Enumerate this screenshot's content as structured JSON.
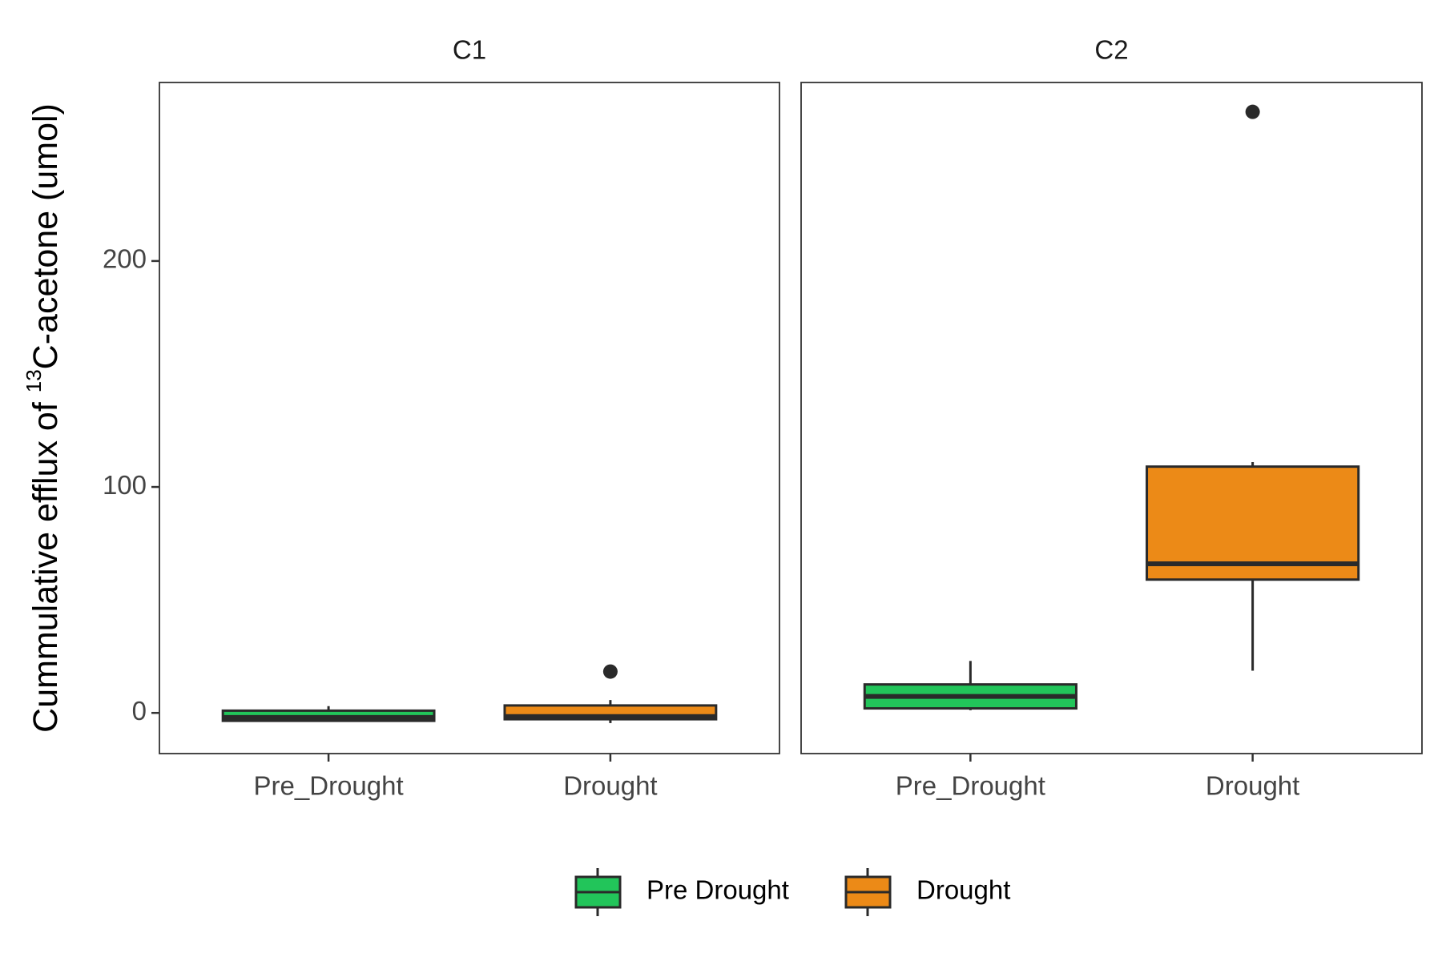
{
  "chart_data": {
    "type": "box",
    "y_label": [
      "Cummulative efflux of ",
      "13",
      "C-acetone (umol)"
    ],
    "ylim": [
      -18,
      279
    ],
    "yticks": [
      0,
      100,
      200
    ],
    "categories": [
      "Pre_Drought",
      "Drought"
    ],
    "series": [
      {
        "name": "Pre Drought",
        "color": "#22c55a"
      },
      {
        "name": "Drought",
        "color": "#ec8a17"
      }
    ],
    "panels": [
      {
        "title": "C1",
        "boxes": [
          {
            "min": -4,
            "q1": -3.5,
            "median": -2,
            "q3": 1,
            "max": 3,
            "outliers": []
          },
          {
            "min": -4.5,
            "q1": -2.8,
            "median": -1.6,
            "q3": 3.3,
            "max": 5.7,
            "outliers": [
              18.3
            ]
          }
        ]
      },
      {
        "title": "C2",
        "boxes": [
          {
            "min": 1.2,
            "q1": 2,
            "median": 7.3,
            "q3": 12.6,
            "max": 23,
            "outliers": []
          },
          {
            "min": 18.7,
            "q1": 59,
            "median": 66,
            "q3": 109,
            "max": 111,
            "outliers": [
              266
            ]
          }
        ]
      }
    ]
  }
}
